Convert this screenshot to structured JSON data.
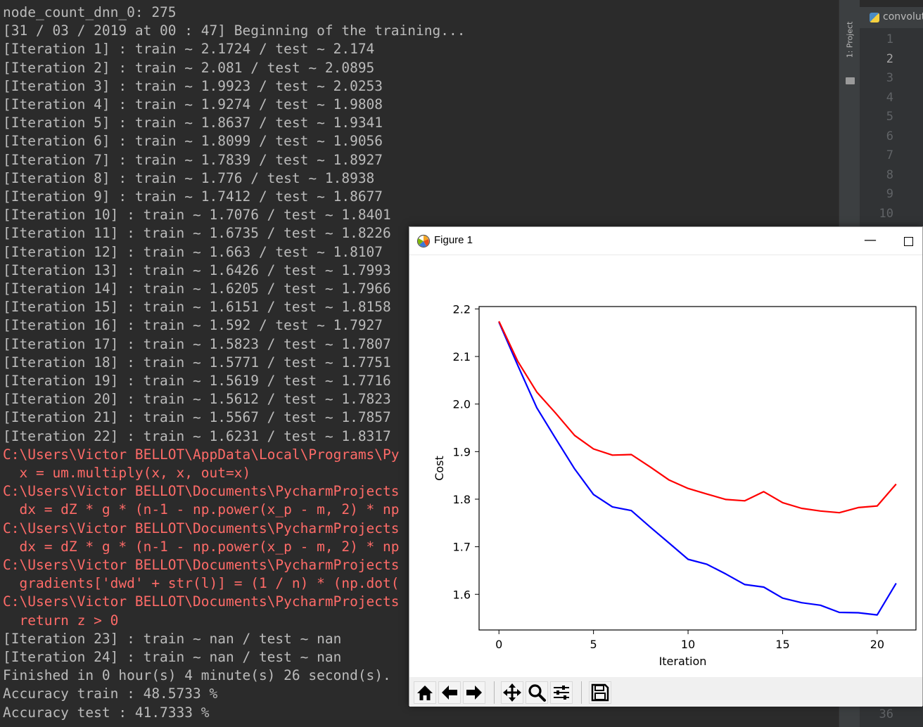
{
  "console": {
    "lines": [
      {
        "text": "node_count_dnn_0: 275",
        "type": "normal"
      },
      {
        "text": "[31 / 03 / 2019 at 00 : 47] Beginning of the training...",
        "type": "normal"
      },
      {
        "text": "[Iteration 1] : train ~ 2.1724 / test ~ 2.174",
        "type": "normal"
      },
      {
        "text": "[Iteration 2] : train ~ 2.081 / test ~ 2.0895",
        "type": "normal"
      },
      {
        "text": "[Iteration 3] : train ~ 1.9923 / test ~ 2.0253",
        "type": "normal"
      },
      {
        "text": "[Iteration 4] : train ~ 1.9274 / test ~ 1.9808",
        "type": "normal"
      },
      {
        "text": "[Iteration 5] : train ~ 1.8637 / test ~ 1.9341",
        "type": "normal"
      },
      {
        "text": "[Iteration 6] : train ~ 1.8099 / test ~ 1.9056",
        "type": "normal"
      },
      {
        "text": "[Iteration 7] : train ~ 1.7839 / test ~ 1.8927",
        "type": "normal"
      },
      {
        "text": "[Iteration 8] : train ~ 1.776 / test ~ 1.8938",
        "type": "normal"
      },
      {
        "text": "[Iteration 9] : train ~ 1.7412 / test ~ 1.8677",
        "type": "normal"
      },
      {
        "text": "[Iteration 10] : train ~ 1.7076 / test ~ 1.8401",
        "type": "normal"
      },
      {
        "text": "[Iteration 11] : train ~ 1.6735 / test ~ 1.8226",
        "type": "normal"
      },
      {
        "text": "[Iteration 12] : train ~ 1.663 / test ~ 1.8107",
        "type": "normal"
      },
      {
        "text": "[Iteration 13] : train ~ 1.6426 / test ~ 1.7993",
        "type": "normal"
      },
      {
        "text": "[Iteration 14] : train ~ 1.6205 / test ~ 1.7966",
        "type": "normal"
      },
      {
        "text": "[Iteration 15] : train ~ 1.6151 / test ~ 1.8158",
        "type": "normal"
      },
      {
        "text": "[Iteration 16] : train ~ 1.592 / test ~ 1.7927",
        "type": "normal"
      },
      {
        "text": "[Iteration 17] : train ~ 1.5823 / test ~ 1.7807",
        "type": "normal"
      },
      {
        "text": "[Iteration 18] : train ~ 1.5771 / test ~ 1.7751",
        "type": "normal"
      },
      {
        "text": "[Iteration 19] : train ~ 1.5619 / test ~ 1.7716",
        "type": "normal"
      },
      {
        "text": "[Iteration 20] : train ~ 1.5612 / test ~ 1.7823",
        "type": "normal"
      },
      {
        "text": "[Iteration 21] : train ~ 1.5567 / test ~ 1.7857",
        "type": "normal"
      },
      {
        "text": "[Iteration 22] : train ~ 1.6231 / test ~ 1.8317",
        "type": "normal"
      },
      {
        "text": "C:\\Users\\Victor BELLOT\\AppData\\Local\\Programs\\Py",
        "type": "error"
      },
      {
        "text": "  x = um.multiply(x, x, out=x)",
        "type": "error"
      },
      {
        "text": "C:\\Users\\Victor BELLOT\\Documents\\PycharmProjects",
        "type": "error"
      },
      {
        "text": "  dx = dZ * g * (n-1 - np.power(x_p - m, 2) * np",
        "type": "error"
      },
      {
        "text": "C:\\Users\\Victor BELLOT\\Documents\\PycharmProjects",
        "type": "error"
      },
      {
        "text": "  dx = dZ * g * (n-1 - np.power(x_p - m, 2) * np",
        "type": "error"
      },
      {
        "text": "C:\\Users\\Victor BELLOT\\Documents\\PycharmProjects",
        "type": "error"
      },
      {
        "text": "  gradients['dwd' + str(l)] = (1 / n) * (np.dot(",
        "type": "error"
      },
      {
        "text": "C:\\Users\\Victor BELLOT\\Documents\\PycharmProjects",
        "type": "error"
      },
      {
        "text": "  return z > 0",
        "type": "error"
      },
      {
        "text": "[Iteration 23] : train ~ nan / test ~ nan",
        "type": "normal"
      },
      {
        "text": "[Iteration 24] : train ~ nan / test ~ nan",
        "type": "normal"
      },
      {
        "text": "Finished in 0 hour(s) 4 minute(s) 26 second(s).",
        "type": "normal"
      },
      {
        "text": "Accuracy train : 48.5733 %",
        "type": "normal"
      },
      {
        "text": "Accuracy test : 41.7333 %",
        "type": "normal"
      }
    ]
  },
  "side_panel": {
    "project_tab_label": "1: Project",
    "folder_icon": "folder-icon"
  },
  "editor": {
    "tab_label": "convolut",
    "tab_icon": "python-file-icon",
    "line_numbers": [
      "1",
      "2",
      "3",
      "4",
      "5",
      "6",
      "7",
      "8",
      "9",
      "10"
    ],
    "current_line": "2",
    "bottom_line_number": "36"
  },
  "figure_window": {
    "title": "Figure 1",
    "icon": "matplotlib-icon",
    "minimize_label": "—",
    "toolbar": [
      {
        "name": "home",
        "icon": "home-icon"
      },
      {
        "name": "back",
        "icon": "arrow-left-icon"
      },
      {
        "name": "forward",
        "icon": "arrow-right-icon"
      },
      {
        "name": "pan",
        "icon": "move-icon"
      },
      {
        "name": "zoom",
        "icon": "zoom-icon"
      },
      {
        "name": "configure",
        "icon": "sliders-icon"
      },
      {
        "name": "save",
        "icon": "save-icon"
      }
    ]
  },
  "chart_data": {
    "type": "line",
    "title": "",
    "xlabel": "Iteration",
    "ylabel": "Cost",
    "xlim": [
      -1.05,
      22.05
    ],
    "ylim": [
      1.525,
      2.205
    ],
    "xticks": [
      0,
      5,
      10,
      15,
      20
    ],
    "yticks": [
      1.6,
      1.7,
      1.8,
      1.9,
      2.0,
      2.1,
      2.2
    ],
    "ytick_labels": [
      "1.6",
      "1.7",
      "1.8",
      "1.9",
      "2.0",
      "2.1",
      "2.2"
    ],
    "grid": false,
    "legend": "none",
    "x": [
      0,
      1,
      2,
      3,
      4,
      5,
      6,
      7,
      8,
      9,
      10,
      11,
      12,
      13,
      14,
      15,
      16,
      17,
      18,
      19,
      20,
      21
    ],
    "series": [
      {
        "color": "#0000ff",
        "values": [
          2.1724,
          2.081,
          1.9923,
          1.9274,
          1.8637,
          1.8099,
          1.7839,
          1.776,
          1.7412,
          1.7076,
          1.6735,
          1.663,
          1.6426,
          1.6205,
          1.6151,
          1.592,
          1.5823,
          1.5771,
          1.5619,
          1.5612,
          1.5567,
          1.6231
        ]
      },
      {
        "color": "#ff0000",
        "values": [
          2.174,
          2.0895,
          2.0253,
          1.9808,
          1.9341,
          1.9056,
          1.8927,
          1.8938,
          1.8677,
          1.8401,
          1.8226,
          1.8107,
          1.7993,
          1.7966,
          1.8158,
          1.7927,
          1.7807,
          1.7751,
          1.7716,
          1.7823,
          1.7857,
          1.8317
        ]
      }
    ]
  }
}
